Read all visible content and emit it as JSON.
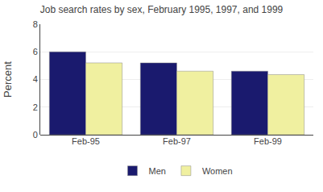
{
  "chart_data": {
    "type": "bar",
    "title": "Job search rates by sex, February 1995, 1997, and 1999",
    "categories": [
      "Feb-95",
      "Feb-97",
      "Feb-99"
    ],
    "series": [
      {
        "name": "Men",
        "color": "#1a1a6e",
        "values": [
          6.0,
          5.2,
          4.6
        ]
      },
      {
        "name": "Women",
        "color": "#f0f0a0",
        "values": [
          5.2,
          4.6,
          4.35
        ]
      }
    ],
    "ylabel": "Percent",
    "ylim": [
      0,
      8
    ],
    "yticks": [
      0,
      2,
      4,
      6,
      8
    ],
    "grid": true,
    "legend": "bottom"
  }
}
